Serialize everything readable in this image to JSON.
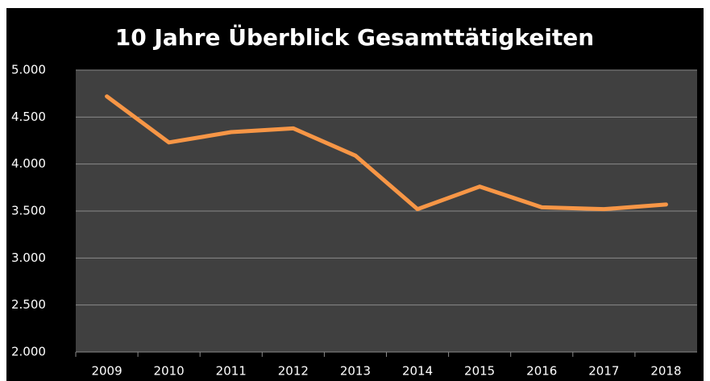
{
  "chart_data": {
    "type": "line",
    "title": "10 Jahre Überblick Gesamttätigkeiten",
    "categories": [
      "2009",
      "2010",
      "2011",
      "2012",
      "2013",
      "2014",
      "2015",
      "2016",
      "2017",
      "2018"
    ],
    "series": [
      {
        "color": "#f79646",
        "values": [
          4720,
          4230,
          4340,
          4380,
          4090,
          3520,
          3760,
          3540,
          3520,
          3570
        ]
      }
    ],
    "ylim": [
      2000,
      5000
    ],
    "yticks": [
      {
        "value": 2000,
        "label": "2.000"
      },
      {
        "value": 2500,
        "label": "2.500"
      },
      {
        "value": 3000,
        "label": "3.000"
      },
      {
        "value": 3500,
        "label": "3.500"
      },
      {
        "value": 4000,
        "label": "4.000"
      },
      {
        "value": 4500,
        "label": "4.500"
      },
      {
        "value": 5000,
        "label": "5.000"
      }
    ],
    "grid": true
  }
}
